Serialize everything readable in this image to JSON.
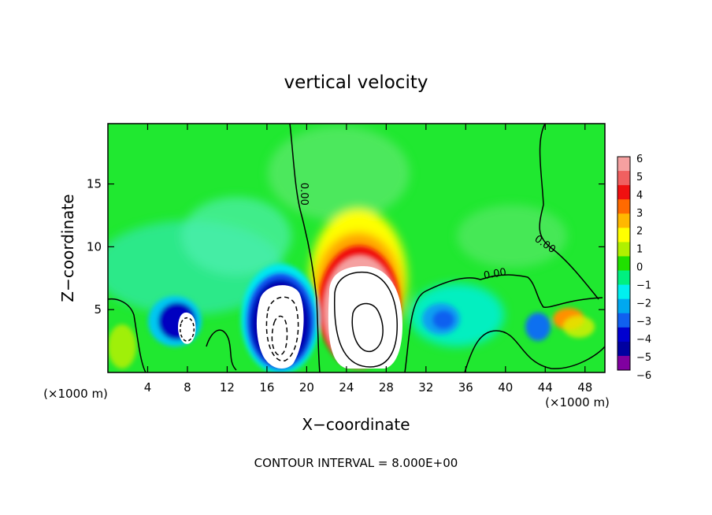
{
  "chart_data": {
    "type": "heatmap",
    "title": "vertical velocity",
    "xlabel": "X−coordinate",
    "ylabel": "Z−coordinate",
    "x_unit_left": "(×1000 m)",
    "x_unit_right": "(×1000 m)",
    "footer": "CONTOUR INTERVAL = 8.000E+00",
    "xlim": [
      0,
      50
    ],
    "ylim": [
      0,
      19.8
    ],
    "x_ticks": [
      4,
      8,
      12,
      16,
      20,
      24,
      28,
      32,
      36,
      40,
      44,
      48
    ],
    "y_ticks": [
      5,
      10,
      15
    ],
    "contour_labels": [
      {
        "text": "0.00",
        "x": 19.4,
        "z": 14.2
      },
      {
        "text": "0.00",
        "x": 39.0,
        "z": 7.6
      },
      {
        "text": "0.00",
        "x": 43.8,
        "z": 10.0
      }
    ],
    "colorbar": {
      "levels": [
        6,
        5,
        4,
        3,
        2,
        1,
        0,
        -1,
        -2,
        -3,
        -4,
        -5,
        -6
      ],
      "labels": [
        "6",
        "5",
        "4",
        "3",
        "2",
        "1",
        "0",
        "−1",
        "−2",
        "−3",
        "−4",
        "−5",
        "−6"
      ],
      "colors": [
        "#f5a0a0",
        "#f06060",
        "#f01010",
        "#ff6a00",
        "#ffb800",
        "#ffff00",
        "#b0f000",
        "#20e000",
        "#00f080",
        "#00f0f0",
        "#00a8f0",
        "#1060f0",
        "#0000d0",
        "#0000a0",
        "#8000a0"
      ]
    },
    "features": [
      {
        "kind": "updraft",
        "x": 25.8,
        "z": 4.4,
        "value": 25
      },
      {
        "kind": "downdraft",
        "x": 17.6,
        "z": 4.2,
        "value": -12
      },
      {
        "kind": "downdraft",
        "x": 7.6,
        "z": 3.8,
        "value": -8
      },
      {
        "kind": "downdraft",
        "x": 33.6,
        "z": 4.2,
        "value": -3.5
      },
      {
        "kind": "downdraft",
        "x": 43.6,
        "z": 3.8,
        "value": -3.5
      },
      {
        "kind": "updraft",
        "x": 46.6,
        "z": 4.4,
        "value": 3.2
      }
    ]
  }
}
